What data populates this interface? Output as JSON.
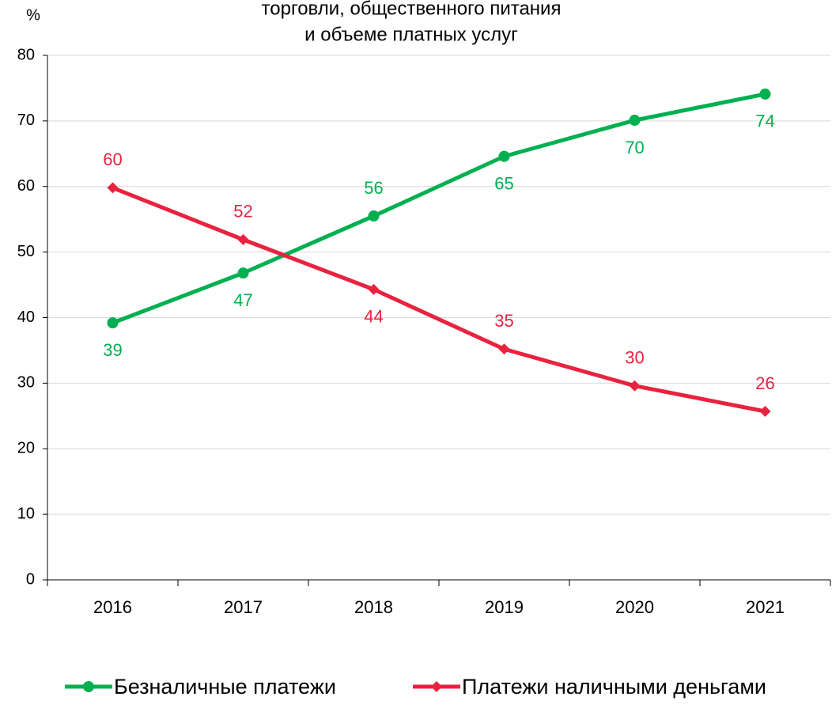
{
  "chart_data": {
    "type": "line",
    "title": [
      "торговли, общественного питания",
      "и объеме платных услуг"
    ],
    "y_label": "%",
    "categories": [
      "2016",
      "2017",
      "2018",
      "2019",
      "2020",
      "2021"
    ],
    "series": [
      {
        "name": "Безналичные платежи",
        "color": "#00b050",
        "marker": "circle",
        "values": [
          39.2,
          46.8,
          55.5,
          64.6,
          70.1,
          74.1
        ],
        "value_labels": [
          "39",
          "47",
          "56",
          "65",
          "70",
          "74"
        ]
      },
      {
        "name": "Платежи наличными деньгами",
        "color": "#e8233f",
        "marker": "diamond",
        "values": [
          59.8,
          51.9,
          44.3,
          35.2,
          29.6,
          25.7
        ],
        "value_labels": [
          "60",
          "52",
          "44",
          "35",
          "30",
          "26"
        ]
      }
    ],
    "ylim": [
      0,
      80
    ],
    "yticks": [
      0,
      10,
      20,
      30,
      40,
      50,
      60,
      70,
      80
    ],
    "grid": true
  }
}
